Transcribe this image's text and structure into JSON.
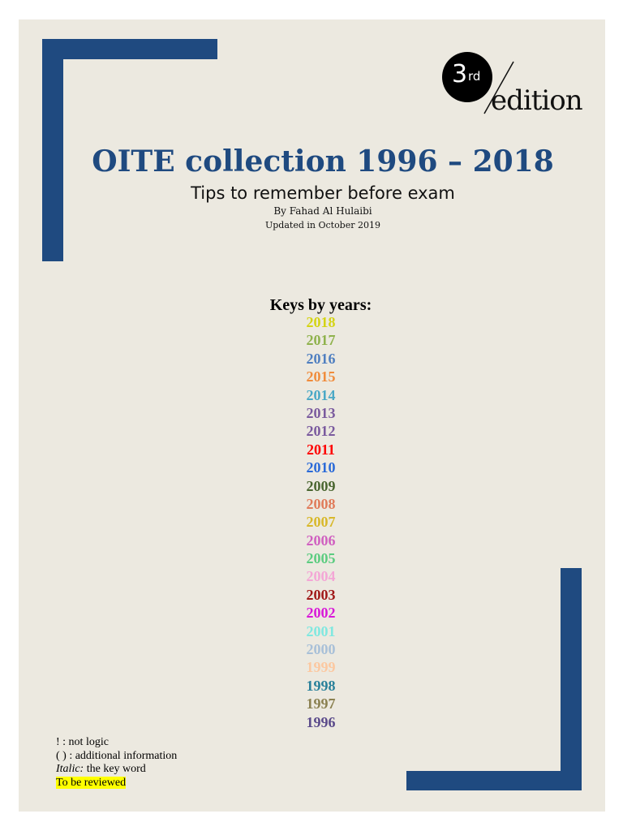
{
  "edition": {
    "number": "3",
    "suffix": "rd",
    "word": "edition"
  },
  "title": "OITE collection 1996 – 2018",
  "subtitle": "Tips to remember before exam",
  "author": "By Fahad Al Hulaibi",
  "updated": "Updated in October 2019",
  "keys_title": "Keys by years:",
  "years": [
    {
      "label": "2018",
      "color": "#d4d414"
    },
    {
      "label": "2017",
      "color": "#8fb24c"
    },
    {
      "label": "2016",
      "color": "#4f7fc0"
    },
    {
      "label": "2015",
      "color": "#f08c3c"
    },
    {
      "label": "2014",
      "color": "#4aa8c6"
    },
    {
      "label": "2013",
      "color": "#7a5a9e"
    },
    {
      "label": "2012",
      "color": "#7a5a9e"
    },
    {
      "label": "2011",
      "color": "#ff0000"
    },
    {
      "label": "2010",
      "color": "#2a6ad8"
    },
    {
      "label": "2009",
      "color": "#4a6630"
    },
    {
      "label": "2008",
      "color": "#e07b5a"
    },
    {
      "label": "2007",
      "color": "#d8b82a"
    },
    {
      "label": "2006",
      "color": "#d060c0"
    },
    {
      "label": "2005",
      "color": "#5ccc80"
    },
    {
      "label": "2004",
      "color": "#f4a6d6"
    },
    {
      "label": "2003",
      "color": "#a01818"
    },
    {
      "label": "2002",
      "color": "#d818d8"
    },
    {
      "label": "2001",
      "color": "#80e8e0"
    },
    {
      "label": "2000",
      "color": "#a8c0d8"
    },
    {
      "label": "1999",
      "color": "#fcc8a0"
    },
    {
      "label": "1998",
      "color": "#28809a"
    },
    {
      "label": "1997",
      "color": "#8a8050"
    },
    {
      "label": "1996",
      "color": "#5a4a8a"
    }
  ],
  "legend": {
    "not_logic": "! : not logic",
    "additional": "( ) : additional information",
    "italic_key": "Italic:",
    "italic_text": " the key word",
    "review": "To be reviewed"
  },
  "colors": {
    "brand": "#1f4a80",
    "background": "#ece9e0",
    "highlight": "#ffff00"
  }
}
